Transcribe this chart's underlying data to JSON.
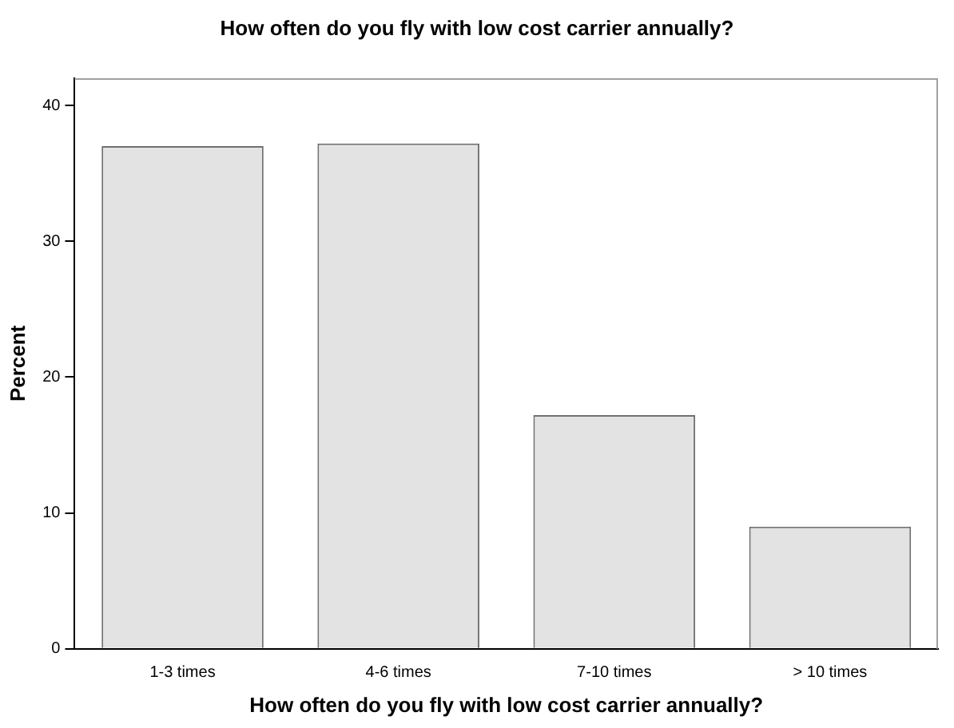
{
  "chart_data": {
    "type": "bar",
    "title": "How often do you fly with low cost carrier annually?",
    "xlabel": "How often do you fly with low cost carrier annually?",
    "ylabel": "Percent",
    "categories": [
      "1-3 times",
      "4-6 times",
      "7-10 times",
      "> 10 times"
    ],
    "values": [
      37.0,
      37.2,
      17.2,
      9.0
    ],
    "color": "#e3e3e3",
    "ylim": [
      0,
      42
    ],
    "yticks": [
      0,
      10,
      20,
      30,
      40
    ],
    "grid": false,
    "legend": false
  }
}
